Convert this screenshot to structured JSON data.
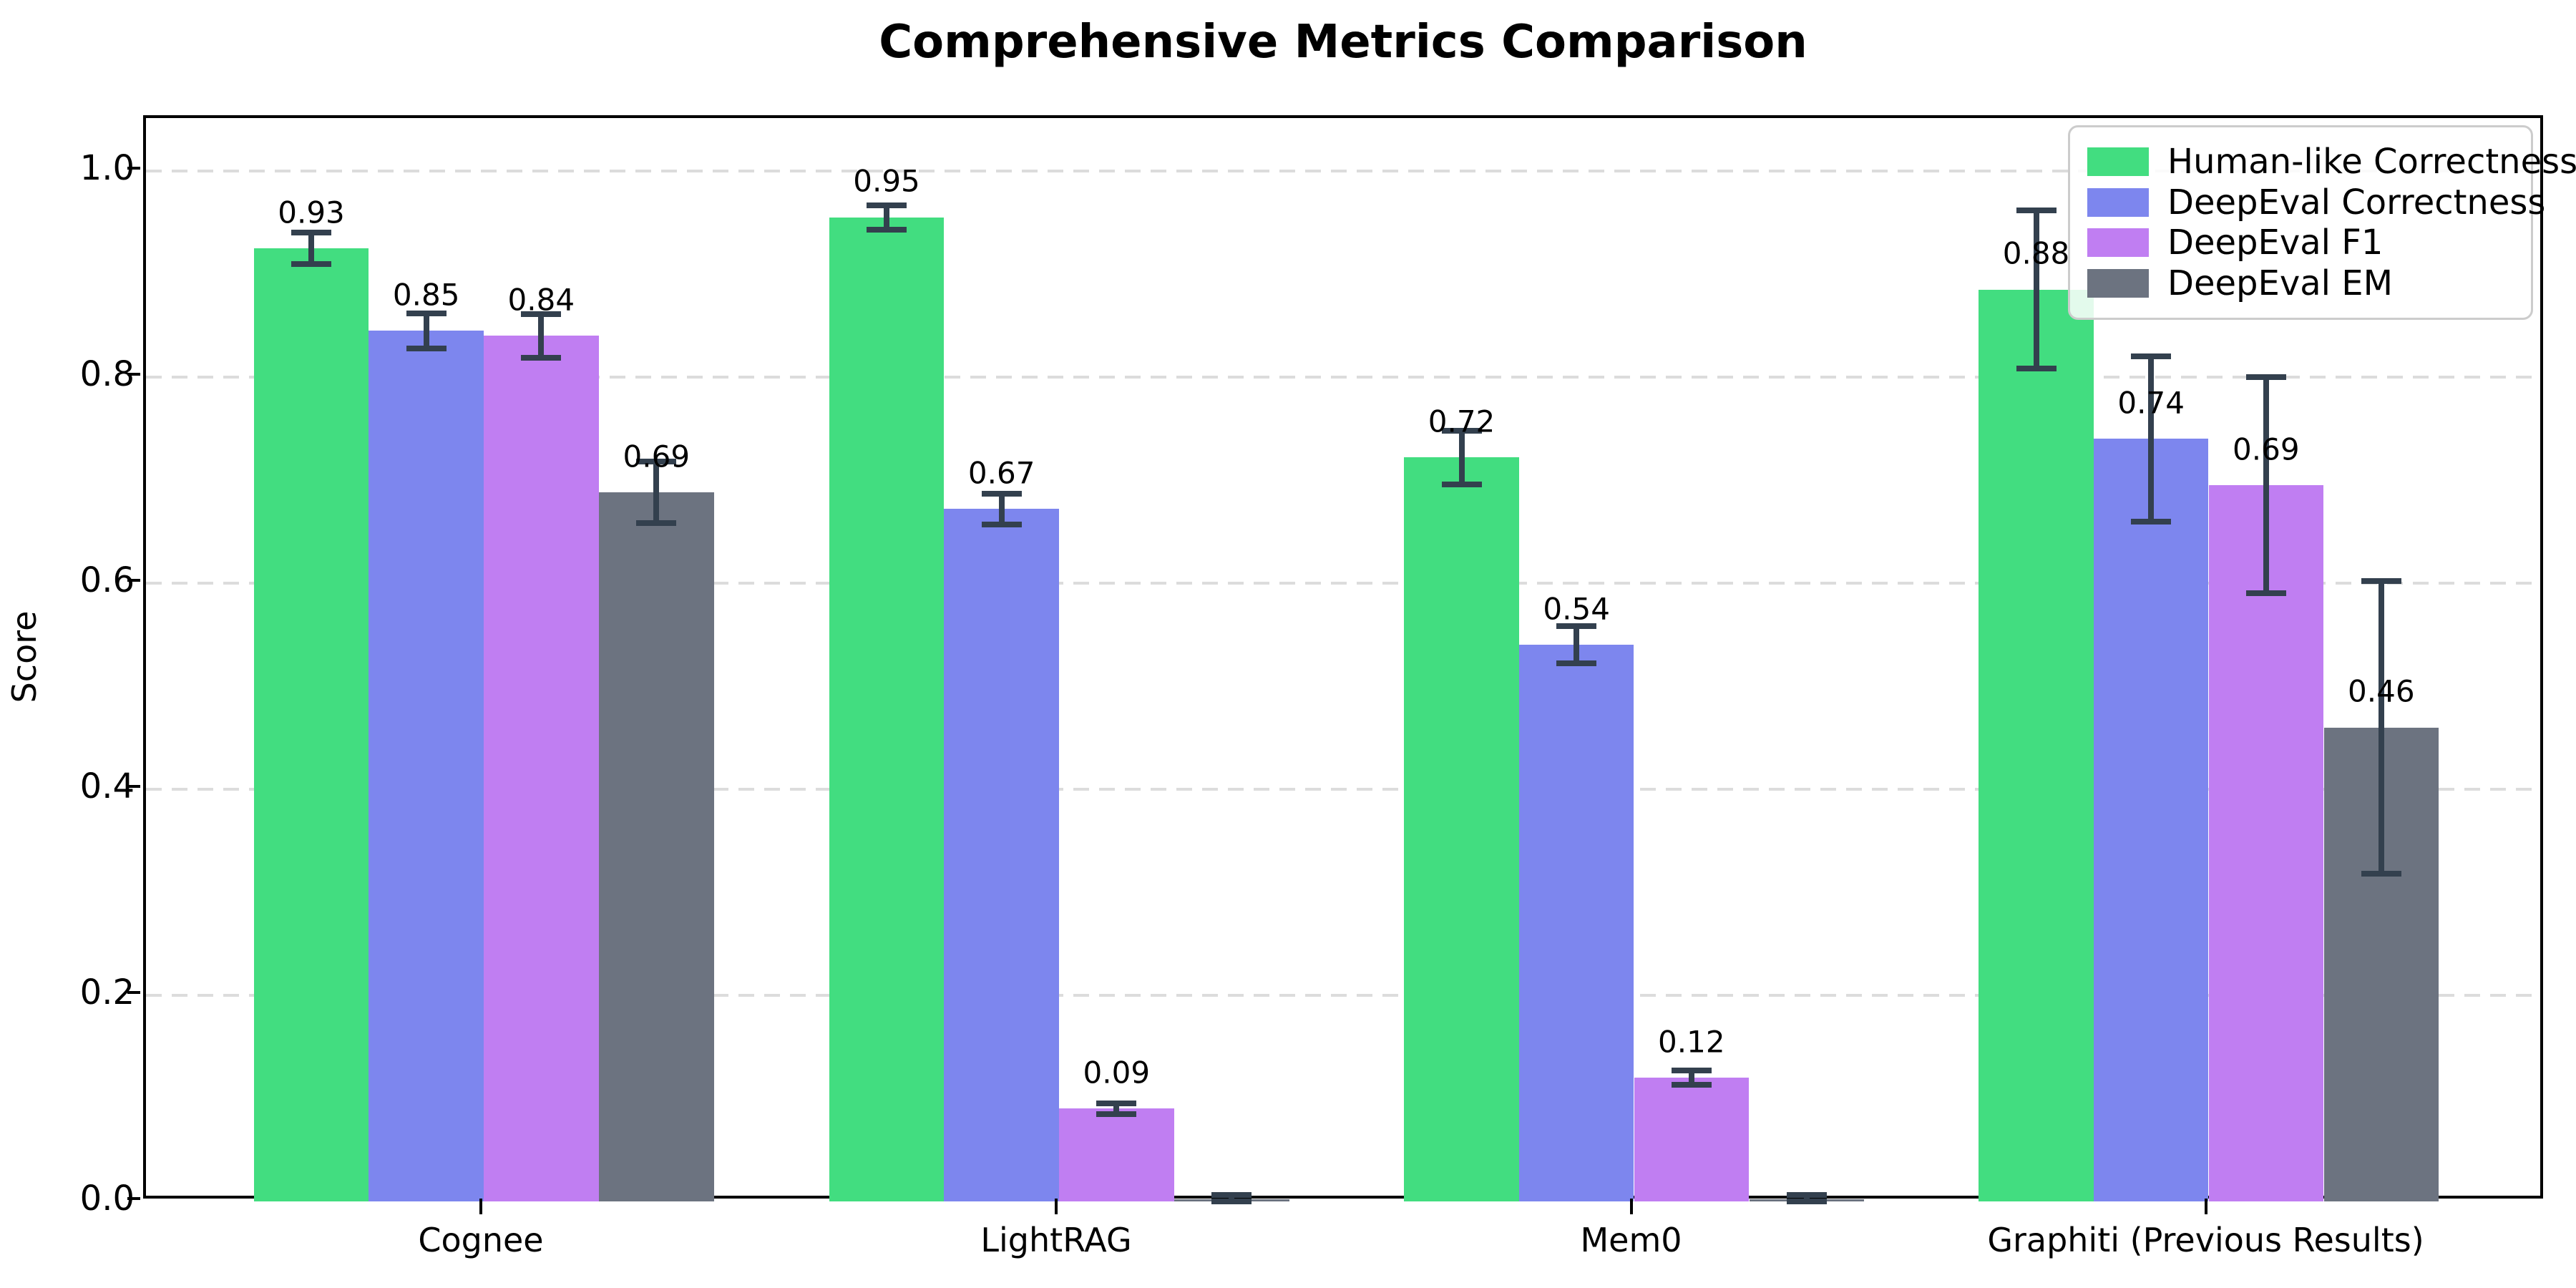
{
  "title": "Comprehensive Metrics Comparison",
  "ylabel": "Score",
  "yticks": [
    {
      "label": "0.0",
      "value": 0.0
    },
    {
      "label": "0.2",
      "value": 0.2
    },
    {
      "label": "0.4",
      "value": 0.4
    },
    {
      "label": "0.6",
      "value": 0.6
    },
    {
      "label": "0.8",
      "value": 0.8
    },
    {
      "label": "1.0",
      "value": 1.0
    }
  ],
  "colors": {
    "error_bar": "#33404e",
    "grid": "#dcdcdc",
    "axis": "#000000",
    "legend_border": "#cccccc"
  },
  "chart_data": {
    "type": "bar",
    "title": "Comprehensive Metrics Comparison",
    "xlabel": "",
    "ylabel": "Score",
    "ylim": [
      0,
      1.05
    ],
    "grid": true,
    "grid_style": "dashed",
    "legend_position": "upper right",
    "categories": [
      "Cognee",
      "LightRAG",
      "Mem0",
      "Graphiti (Previous Results)"
    ],
    "series": [
      {
        "name": "Human-like Correctness",
        "color": "#42dd80",
        "values": [
          0.925,
          0.955,
          0.722,
          0.885
        ],
        "errors": [
          0.015,
          0.012,
          0.026,
          0.077
        ],
        "labels": [
          "0.93",
          "0.95",
          "0.72",
          "0.88"
        ]
      },
      {
        "name": "DeepEval Correctness",
        "color": "#7d86ee",
        "values": [
          0.845,
          0.672,
          0.54,
          0.74
        ],
        "errors": [
          0.017,
          0.015,
          0.018,
          0.08
        ],
        "labels": [
          "0.85",
          "0.67",
          "0.54",
          "0.74"
        ]
      },
      {
        "name": "DeepEval F1",
        "color": "#c07ef2",
        "values": [
          0.84,
          0.09,
          0.12,
          0.695
        ],
        "errors": [
          0.021,
          0.005,
          0.007,
          0.105
        ],
        "labels": [
          "0.84",
          "0.09",
          "0.12",
          "0.69"
        ]
      },
      {
        "name": "DeepEval EM",
        "color": "#6c7380",
        "values": [
          0.688,
          0.002,
          0.002,
          0.46
        ],
        "errors": [
          0.03,
          0.004,
          0.004,
          0.142
        ],
        "labels": [
          "0.69",
          "",
          "",
          "0.46"
        ]
      }
    ]
  }
}
